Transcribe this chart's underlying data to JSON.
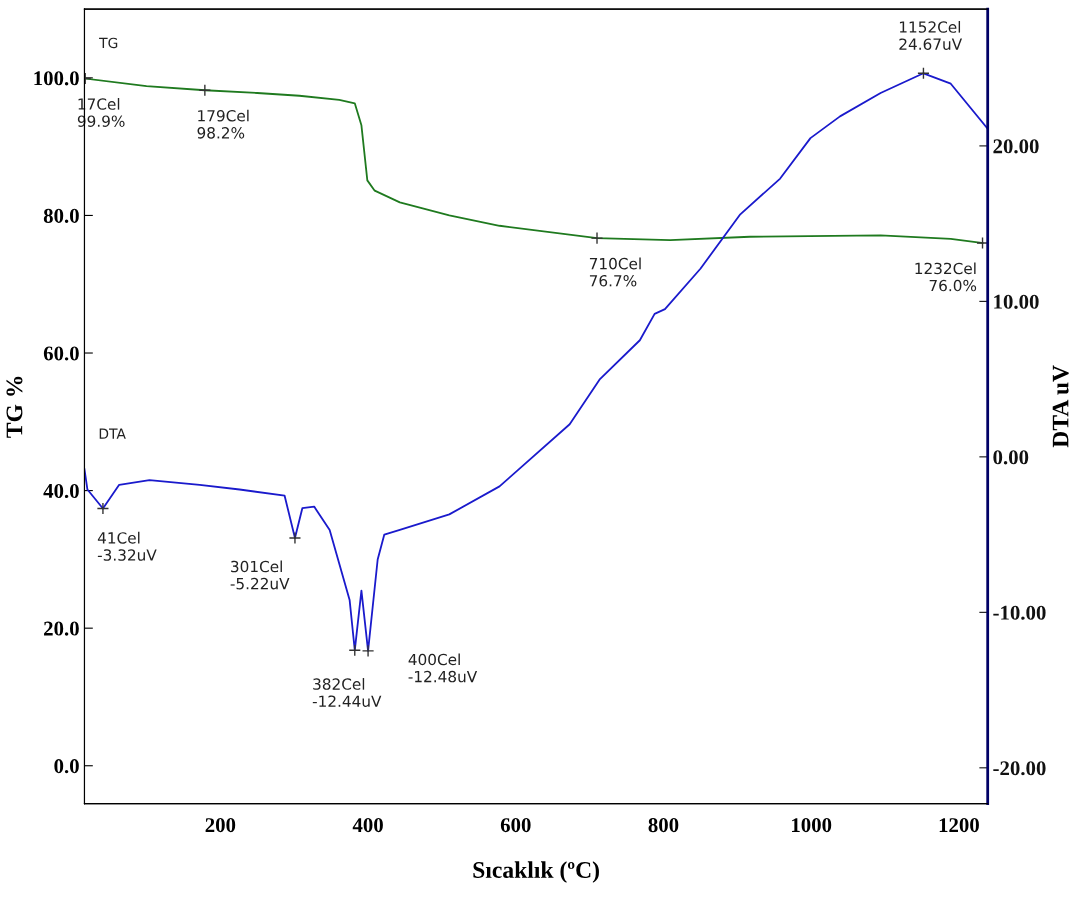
{
  "chart_data": {
    "type": "line",
    "xlabel": "Sıcaklık (ºC)",
    "ylabel": "TG %",
    "y2label": "DTA uV",
    "xlim": [
      16,
      1239
    ],
    "xticks": [
      200,
      400,
      600,
      800,
      1000,
      1200
    ],
    "ylim": [
      -5.5,
      110
    ],
    "yticks": [
      {
        "value": 0,
        "label": "0.0"
      },
      {
        "value": 20,
        "label": "20.0"
      },
      {
        "value": 40,
        "label": "40.0"
      },
      {
        "value": 60,
        "label": "60.0"
      },
      {
        "value": 80,
        "label": "80.0"
      },
      {
        "value": 100,
        "label": "100.0"
      }
    ],
    "y2lim": [
      -22.3,
      28.8
    ],
    "y2ticks": [
      {
        "value": -20,
        "label": "-20.00"
      },
      {
        "value": -10,
        "label": "-10.00"
      },
      {
        "value": 0,
        "label": "0.00"
      },
      {
        "value": 10,
        "label": "10.00"
      },
      {
        "value": 20,
        "label": "20.00"
      }
    ],
    "grid": false,
    "legend": false,
    "series": [
      {
        "name": "TG",
        "color": "#1f7a1f",
        "x": [
          17,
          100,
          179,
          250,
          307,
          361,
          382,
          391,
          399,
          409,
          443,
          510,
          578,
          710,
          809,
          917,
          1094,
          1189,
          1232
        ],
        "values": [
          99.9,
          98.8,
          98.2,
          97.8,
          97.4,
          96.8,
          96.3,
          93.1,
          85.1,
          83.6,
          81.9,
          80.0,
          78.5,
          76.7,
          76.4,
          76.9,
          77.1,
          76.6,
          76.0
        ]
      },
      {
        "name": "DTA",
        "color": "#1a1acc",
        "axis": "y2",
        "x": [
          16,
          20,
          41,
          63,
          104,
          172,
          226,
          287,
          301,
          311,
          327,
          348,
          375,
          382,
          391,
          400,
          413,
          422,
          443,
          510,
          578,
          673,
          714,
          768,
          788,
          802,
          850,
          904,
          958,
          999,
          1039,
          1094,
          1152,
          1189,
          1239
        ],
        "values": [
          -0.8,
          -2.1,
          -3.32,
          -1.8,
          -1.5,
          -1.8,
          -2.1,
          -2.5,
          -5.22,
          -3.3,
          -3.2,
          -4.7,
          -9.2,
          -12.44,
          -8.6,
          -12.48,
          -6.6,
          -5.0,
          -4.7,
          -3.7,
          -1.9,
          2.1,
          5.0,
          7.5,
          9.2,
          9.5,
          12.1,
          15.6,
          17.9,
          20.5,
          21.9,
          23.4,
          24.67,
          24.0,
          21.1
        ]
      },
      {
        "type": "scatter",
        "axis": "y2",
        "color": "#333333",
        "marker": "cross",
        "x": [
          41,
          301,
          382,
          400,
          1152
        ],
        "values": [
          -3.32,
          -5.22,
          -12.44,
          -12.48,
          24.67
        ]
      }
    ],
    "annotations": [
      {
        "text": "17Cel\n99.9%",
        "x": 17,
        "y": 99.9
      },
      {
        "text": "179Cel\n98.2%",
        "x": 179,
        "y": 98.2
      },
      {
        "text": "710Cel\n76.7%",
        "x": 710,
        "y": 76.7
      },
      {
        "text": "1232Cel\n76.0%",
        "x": 1232,
        "y": 76.0
      },
      "1152Cel\n24.67uV",
      "41Cel\n-3.32uV",
      "301Cel\n-5.22uV",
      "382Cel\n-12.44uV",
      "400Cel\n-12.48uV"
    ]
  }
}
